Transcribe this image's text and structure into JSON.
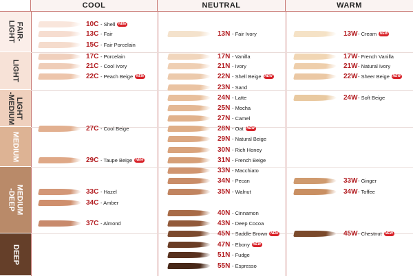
{
  "columns": [
    {
      "key": "cool",
      "label": "COOL"
    },
    {
      "key": "neutral",
      "label": "NEUTRAL"
    },
    {
      "key": "warm",
      "label": "WARM"
    }
  ],
  "categories": [
    {
      "label": "FAIR-\nLIGHT",
      "bg": "#fbeee9",
      "text": "#333333"
    },
    {
      "label": "LIGHT",
      "bg": "#f7e2d7",
      "text": "#333333"
    },
    {
      "label": "LIGHT\n-MEDIUM",
      "bg": "#efd0bd",
      "text": "#333333"
    },
    {
      "label": "MEDIUM",
      "bg": "#ddb394",
      "text": "#ffffff"
    },
    {
      "label": "MEDIUM\n-DEEP",
      "bg": "#b98a69",
      "text": "#ffffff"
    },
    {
      "label": "DEEP",
      "bg": "#653f29",
      "text": "#ffffff"
    }
  ],
  "badge_label": "NEW",
  "accent_color": "#b31e22",
  "shades": [
    {
      "code": "10C",
      "name": "- Shell",
      "new": true,
      "col": "cool",
      "row": 0,
      "color": "#f9e6dc"
    },
    {
      "code": "13C",
      "name": "- Fair",
      "new": false,
      "col": "cool",
      "row": 1,
      "color": "#f6ddd0"
    },
    {
      "code": "15C",
      "name": "- Fair Porcelain",
      "new": false,
      "col": "cool",
      "row": 2,
      "color": "#f5dccd"
    },
    {
      "code": "17C",
      "name": "- Porcelain",
      "new": false,
      "col": "cool",
      "row": 3,
      "color": "#f0d0bd"
    },
    {
      "code": "21C",
      "name": "- Cool Ivory",
      "new": false,
      "col": "cool",
      "row": 4,
      "color": "#efcdb8"
    },
    {
      "code": "22C",
      "name": "- Peach Beige",
      "new": true,
      "col": "cool",
      "row": 5,
      "color": "#edc5ab"
    },
    {
      "code": "27C",
      "name": "- Cool Beige",
      "new": false,
      "col": "cool",
      "row": 10,
      "color": "#e2b090"
    },
    {
      "code": "29C",
      "name": "- Taupe Beige",
      "new": true,
      "col": "cool",
      "row": 13,
      "color": "#dfa887"
    },
    {
      "code": "33C",
      "name": "- Hazel",
      "new": false,
      "col": "cool",
      "row": 16,
      "color": "#d39777"
    },
    {
      "code": "34C",
      "name": "- Amber",
      "new": false,
      "col": "cool",
      "row": 17,
      "color": "#cf8f6d"
    },
    {
      "code": "37C",
      "name": "- Almond",
      "new": false,
      "col": "cool",
      "row": 19,
      "color": "#c88a6c"
    },
    {
      "code": "13N",
      "name": "- Fair Ivory",
      "new": false,
      "col": "neutral",
      "row": 1,
      "color": "#f4e2cc"
    },
    {
      "code": "17N",
      "name": "- Vanilla",
      "new": false,
      "col": "neutral",
      "row": 3,
      "color": "#f1d6bd"
    },
    {
      "code": "21N",
      "name": "- Ivory",
      "new": false,
      "col": "neutral",
      "row": 4,
      "color": "#efcfb3"
    },
    {
      "code": "22N",
      "name": "- Shell Beige",
      "new": true,
      "col": "neutral",
      "row": 5,
      "color": "#eccaac"
    },
    {
      "code": "23N",
      "name": "- Sand",
      "new": false,
      "col": "neutral",
      "row": 6,
      "color": "#eac3a2"
    },
    {
      "code": "24N",
      "name": "- Latte",
      "new": false,
      "col": "neutral",
      "row": 7,
      "color": "#e8bf9c"
    },
    {
      "code": "25N",
      "name": "- Mocha",
      "new": false,
      "col": "neutral",
      "row": 8,
      "color": "#e4b894"
    },
    {
      "code": "27N",
      "name": "- Camel",
      "new": false,
      "col": "neutral",
      "row": 9,
      "color": "#e1b28c"
    },
    {
      "code": "28N",
      "name": "- Oat",
      "new": true,
      "col": "neutral",
      "row": 10,
      "color": "#dfae87"
    },
    {
      "code": "29N",
      "name": "- Natural Beige",
      "new": false,
      "col": "neutral",
      "row": 11,
      "color": "#dca882"
    },
    {
      "code": "30N",
      "name": "- Rich Honey",
      "new": false,
      "col": "neutral",
      "row": 12,
      "color": "#d9a37c"
    },
    {
      "code": "31N",
      "name": "- French Beige",
      "new": false,
      "col": "neutral",
      "row": 13,
      "color": "#d69f78"
    },
    {
      "code": "33N",
      "name": "- Macchiato",
      "new": false,
      "col": "neutral",
      "row": 14,
      "color": "#d09570"
    },
    {
      "code": "34N",
      "name": "- Pecan",
      "new": false,
      "col": "neutral",
      "row": 15,
      "color": "#c98c67"
    },
    {
      "code": "35N",
      "name": "- Walnut",
      "new": false,
      "col": "neutral",
      "row": 16,
      "color": "#c18460"
    },
    {
      "code": "40N",
      "name": "- Cinnamon",
      "new": false,
      "col": "neutral",
      "row": 18,
      "color": "#a86b47"
    },
    {
      "code": "43N",
      "name": "- Deep Cocoa",
      "new": false,
      "col": "neutral",
      "row": 19,
      "color": "#925a3a"
    },
    {
      "code": "45N",
      "name": "- Saddle Brown",
      "new": true,
      "col": "neutral",
      "row": 20,
      "color": "#7c4a2e"
    },
    {
      "code": "47N",
      "name": "- Ebony",
      "new": true,
      "col": "neutral",
      "row": 21,
      "color": "#6a3d25"
    },
    {
      "code": "51N",
      "name": "- Fudge",
      "new": false,
      "col": "neutral",
      "row": 22,
      "color": "#58311e"
    },
    {
      "code": "55N",
      "name": "- Espresso",
      "new": false,
      "col": "neutral",
      "row": 23,
      "color": "#472717"
    },
    {
      "code": "13W",
      "name": "- Cream",
      "new": true,
      "col": "warm",
      "row": 1,
      "color": "#f5e2c6"
    },
    {
      "code": "17W",
      "name": "- French Vanilla",
      "new": false,
      "col": "warm",
      "row": 3,
      "color": "#f1d6b4"
    },
    {
      "code": "21W",
      "name": "- Natural Ivory",
      "new": false,
      "col": "warm",
      "row": 4,
      "color": "#eeceab"
    },
    {
      "code": "22W",
      "name": "- Sheer Beige",
      "new": true,
      "col": "warm",
      "row": 5,
      "color": "#ebc8a4"
    },
    {
      "code": "24W",
      "name": "- Soft Beige",
      "new": false,
      "col": "warm",
      "row": 7,
      "color": "#e9c9a0"
    },
    {
      "code": "33W",
      "name": "- Ginger",
      "new": false,
      "col": "warm",
      "row": 15,
      "color": "#cf9a6e"
    },
    {
      "code": "34W",
      "name": "- Toffee",
      "new": false,
      "col": "warm",
      "row": 16,
      "color": "#c98f62"
    },
    {
      "code": "45W",
      "name": "- Chestnut",
      "new": true,
      "col": "warm",
      "row": 20,
      "color": "#7b4a2b"
    }
  ]
}
